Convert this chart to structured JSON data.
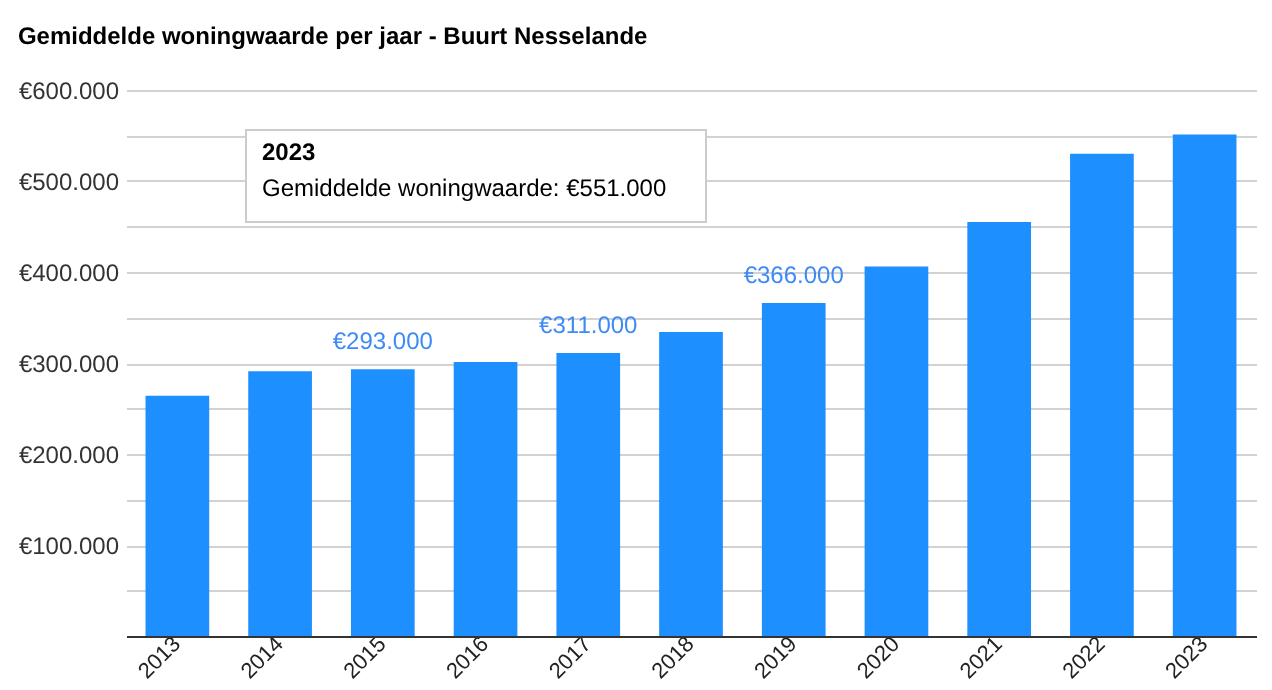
{
  "chart_data": {
    "type": "bar",
    "title": "Gemiddelde woningwaarde per jaar - Buurt Nesselande",
    "categories": [
      "2013",
      "2014",
      "2015",
      "2016",
      "2017",
      "2018",
      "2019",
      "2020",
      "2021",
      "2022",
      "2023"
    ],
    "values": [
      264000,
      291000,
      293000,
      301000,
      311000,
      334000,
      366000,
      406000,
      455000,
      530000,
      551000
    ],
    "value_labels": [
      null,
      null,
      "€293.000",
      null,
      "€311.000",
      null,
      "€366.000",
      null,
      null,
      null,
      null
    ],
    "color": "#1e8fff",
    "ylim": [
      0,
      600000
    ],
    "yticks": [
      {
        "value": 0,
        "label": null
      },
      {
        "value": 50000,
        "label": null
      },
      {
        "value": 100000,
        "label": "€100.000"
      },
      {
        "value": 150000,
        "label": null
      },
      {
        "value": 200000,
        "label": "€200.000"
      },
      {
        "value": 250000,
        "label": null
      },
      {
        "value": 300000,
        "label": "€300.000"
      },
      {
        "value": 350000,
        "label": null
      },
      {
        "value": 400000,
        "label": "€400.000"
      },
      {
        "value": 450000,
        "label": null
      },
      {
        "value": 500000,
        "label": "€500.000"
      },
      {
        "value": 550000,
        "label": null
      },
      {
        "value": 600000,
        "label": "€600.000"
      }
    ],
    "grid": "y",
    "annotations": [
      "2023",
      "Gemiddelde woningwaarde: €551.000"
    ]
  }
}
